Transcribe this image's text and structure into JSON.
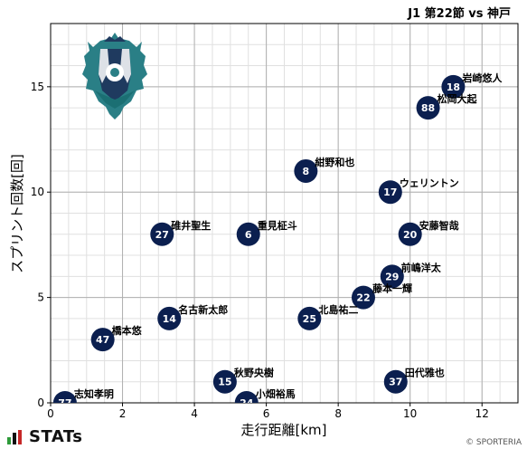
{
  "header": {
    "match_title": "J1 第22節 vs 神戸"
  },
  "footer": {
    "brand": "STATs",
    "copyright": "© SPORTERIA"
  },
  "colors": {
    "marker": "#0b1f4f",
    "marker_text": "#ffffff",
    "grid_major": "#b0b0b0",
    "grid_minor": "#e0e0e0"
  },
  "chart_data": {
    "type": "scatter",
    "xlabel": "走行距離[km]",
    "ylabel": "スプリント回数[回]",
    "xlim": [
      0,
      13
    ],
    "ylim": [
      0,
      18
    ],
    "xticks": [
      0,
      2,
      4,
      6,
      8,
      10,
      12
    ],
    "yticks": [
      0,
      5,
      10,
      15
    ],
    "grid": true,
    "points": [
      {
        "number": "18",
        "name": "岩崎悠人",
        "x": 11.2,
        "y": 15
      },
      {
        "number": "88",
        "name": "松岡大起",
        "x": 10.5,
        "y": 14
      },
      {
        "number": "8",
        "name": "紺野和也",
        "x": 7.1,
        "y": 11
      },
      {
        "number": "17",
        "name": "ウェリントン",
        "x": 9.45,
        "y": 10
      },
      {
        "number": "27",
        "name": "碓井聖生",
        "x": 3.1,
        "y": 8
      },
      {
        "number": "6",
        "name": "重見柾斗",
        "x": 5.5,
        "y": 8
      },
      {
        "number": "20",
        "name": "安藤智哉",
        "x": 10.0,
        "y": 8
      },
      {
        "number": "29",
        "name": "前嶋洋太",
        "x": 9.5,
        "y": 6
      },
      {
        "number": "22",
        "name": "藤本一輝",
        "x": 8.7,
        "y": 5
      },
      {
        "number": "14",
        "name": "名古新太郎",
        "x": 3.3,
        "y": 4
      },
      {
        "number": "25",
        "name": "北島祐二",
        "x": 7.2,
        "y": 4
      },
      {
        "number": "47",
        "name": "橋本悠",
        "x": 1.45,
        "y": 3
      },
      {
        "number": "15",
        "name": "秋野央樹",
        "x": 4.85,
        "y": 1
      },
      {
        "number": "37",
        "name": "田代雅也",
        "x": 9.6,
        "y": 1
      },
      {
        "number": "77",
        "name": "志知孝明",
        "x": 0.4,
        "y": 0
      },
      {
        "number": "24",
        "name": "小畑裕馬",
        "x": 5.45,
        "y": 0
      }
    ]
  }
}
